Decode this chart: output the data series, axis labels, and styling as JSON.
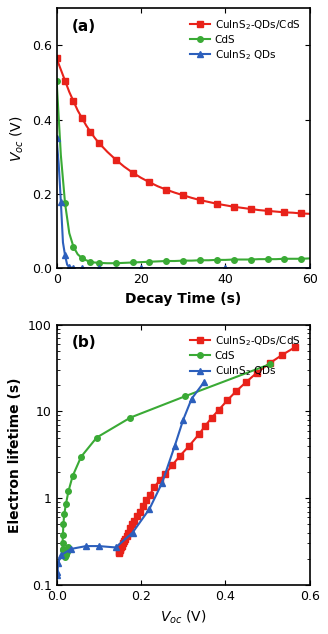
{
  "panel_a": {
    "title": "(a)",
    "xlabel": "Decay Time (s)",
    "ylabel": "$V_{oc}$ (V)",
    "xlim": [
      0,
      60
    ],
    "ylim": [
      0,
      0.7
    ],
    "yticks": [
      0.0,
      0.2,
      0.4,
      0.6
    ],
    "xticks": [
      0,
      20,
      40,
      60
    ],
    "series": {
      "CuInS2_CdS": {
        "label": "CuInS$_2$-QDs/CdS",
        "color": "#e8221a",
        "marker": "s",
        "time": [
          0,
          1,
          2,
          3,
          4,
          5,
          6,
          7,
          8,
          9,
          10,
          12,
          14,
          16,
          18,
          20,
          22,
          24,
          26,
          28,
          30,
          32,
          34,
          36,
          38,
          40,
          42,
          44,
          46,
          48,
          50,
          52,
          54,
          56,
          58,
          60
        ],
        "voc": [
          0.565,
          0.535,
          0.505,
          0.475,
          0.45,
          0.425,
          0.405,
          0.385,
          0.368,
          0.352,
          0.338,
          0.314,
          0.293,
          0.274,
          0.258,
          0.244,
          0.232,
          0.221,
          0.212,
          0.204,
          0.197,
          0.19,
          0.184,
          0.179,
          0.174,
          0.17,
          0.166,
          0.163,
          0.16,
          0.157,
          0.155,
          0.153,
          0.151,
          0.15,
          0.148,
          0.147
        ]
      },
      "CdS": {
        "label": "CdS",
        "color": "#3aaa35",
        "marker": "o",
        "time": [
          0,
          1,
          2,
          3,
          4,
          5,
          6,
          7,
          8,
          9,
          10,
          12,
          14,
          16,
          18,
          20,
          22,
          24,
          26,
          28,
          30,
          32,
          34,
          36,
          38,
          40,
          42,
          44,
          46,
          48,
          50,
          52,
          54,
          56,
          58,
          60
        ],
        "voc": [
          0.505,
          0.305,
          0.175,
          0.095,
          0.058,
          0.038,
          0.028,
          0.022,
          0.018,
          0.016,
          0.015,
          0.014,
          0.014,
          0.015,
          0.016,
          0.017,
          0.018,
          0.019,
          0.02,
          0.02,
          0.021,
          0.021,
          0.022,
          0.022,
          0.023,
          0.023,
          0.024,
          0.024,
          0.024,
          0.025,
          0.025,
          0.025,
          0.026,
          0.026,
          0.026,
          0.027
        ]
      },
      "CuInS2": {
        "label": "CuInS$_2$ QDs",
        "color": "#2c5fbc",
        "marker": "^",
        "time": [
          0,
          0.5,
          1.0,
          1.5,
          2.0,
          2.5,
          3.0,
          3.5,
          4.0,
          5.0,
          6.0,
          8.0,
          10.0,
          15.0,
          20.0,
          30.0,
          40.0,
          50.0,
          60.0
        ],
        "voc": [
          0.35,
          0.28,
          0.18,
          0.07,
          0.035,
          0.01,
          0.004,
          0.002,
          0.001,
          0.001,
          0.001,
          0.001,
          0.001,
          0.001,
          0.001,
          0.001,
          0.001,
          0.001,
          0.001
        ]
      }
    }
  },
  "panel_b": {
    "title": "(b)",
    "xlabel": "$V_{oc}$ (V)",
    "ylabel": "Electron lifetime (s)",
    "xlim": [
      0,
      0.6
    ],
    "ylim_log": [
      0.1,
      100
    ],
    "xticks": [
      0.0,
      0.2,
      0.4,
      0.6
    ],
    "series": {
      "CuInS2_CdS": {
        "label": "CuInS$_2$-QDs/CdS",
        "color": "#e8221a",
        "marker": "s",
        "voc": [
          0.147,
          0.148,
          0.15,
          0.151,
          0.153,
          0.155,
          0.157,
          0.16,
          0.163,
          0.166,
          0.17,
          0.174,
          0.179,
          0.184,
          0.19,
          0.197,
          0.204,
          0.212,
          0.221,
          0.232,
          0.244,
          0.258,
          0.274,
          0.293,
          0.314,
          0.338,
          0.352,
          0.368,
          0.385,
          0.405,
          0.425,
          0.45,
          0.475,
          0.505,
          0.535,
          0.565
        ],
        "tau": [
          0.23,
          0.24,
          0.25,
          0.26,
          0.27,
          0.28,
          0.3,
          0.32,
          0.34,
          0.37,
          0.4,
          0.45,
          0.5,
          0.55,
          0.62,
          0.7,
          0.82,
          0.95,
          1.1,
          1.35,
          1.6,
          1.9,
          2.4,
          3.1,
          4.0,
          5.5,
          6.8,
          8.5,
          10.5,
          13.5,
          17.0,
          22.0,
          28.0,
          36.0,
          45.0,
          55.0
        ]
      },
      "CdS": {
        "label": "CdS",
        "color": "#3aaa35",
        "marker": "o",
        "voc": [
          0.027,
          0.026,
          0.025,
          0.024,
          0.023,
          0.022,
          0.021,
          0.02,
          0.019,
          0.018,
          0.017,
          0.016,
          0.015,
          0.014,
          0.015,
          0.016,
          0.018,
          0.022,
          0.028,
          0.038,
          0.058,
          0.095,
          0.175,
          0.305,
          0.505
        ],
        "tau": [
          0.27,
          0.26,
          0.25,
          0.24,
          0.23,
          0.22,
          0.21,
          0.22,
          0.22,
          0.23,
          0.24,
          0.25,
          0.26,
          0.3,
          0.38,
          0.5,
          0.65,
          0.85,
          1.2,
          1.8,
          3.0,
          5.0,
          8.5,
          15.0,
          35.0
        ]
      },
      "CuInS2": {
        "label": "CuInS$_2$ QDs",
        "color": "#2c5fbc",
        "marker": "^",
        "voc": [
          0.001,
          0.002,
          0.004,
          0.01,
          0.035,
          0.07,
          0.1,
          0.14,
          0.18,
          0.22,
          0.25,
          0.28,
          0.3,
          0.32,
          0.35
        ],
        "tau": [
          0.13,
          0.14,
          0.18,
          0.22,
          0.26,
          0.28,
          0.28,
          0.27,
          0.4,
          0.75,
          1.5,
          4.0,
          8.0,
          14.0,
          22.0
        ]
      }
    }
  },
  "background_color": "#ffffff",
  "axes_background": "#ffffff"
}
